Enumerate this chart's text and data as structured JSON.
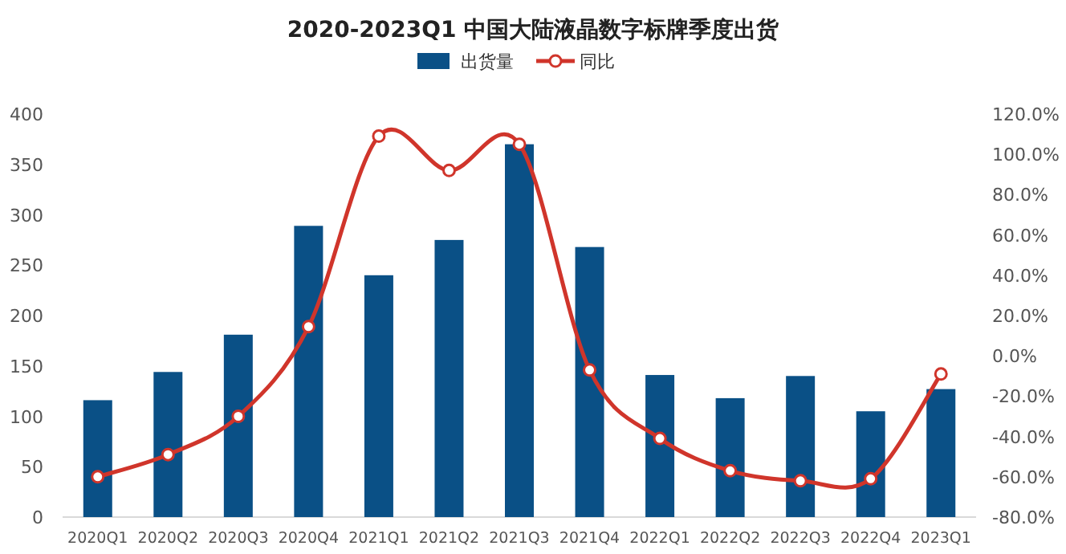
{
  "chart_data": {
    "type": "bar",
    "title": "2020-2023Q1 中国大陆液晶数字标牌季度出货",
    "categories": [
      "2020Q1",
      "2020Q2",
      "2020Q3",
      "2020Q4",
      "2021Q1",
      "2021Q2",
      "2021Q3",
      "2021Q4",
      "2022Q1",
      "2022Q2",
      "2022Q3",
      "2022Q4",
      "2023Q1"
    ],
    "series": [
      {
        "name": "出货量",
        "color": "#0a5086",
        "values": [
          116,
          144,
          181,
          289,
          240,
          275,
          370,
          268,
          141,
          118,
          140,
          105,
          127
        ]
      },
      {
        "name": "同比",
        "type": "line",
        "axis": "y2",
        "color": "#d0352b",
        "marker": "circle",
        "values": [
          -60,
          -49,
          -30,
          14.5,
          109,
          92,
          105,
          -7,
          -41,
          -57,
          -62,
          -61,
          -9
        ]
      }
    ],
    "ylim": [
      0,
      400
    ],
    "yticks": [
      0,
      50,
      100,
      150,
      200,
      250,
      300,
      350,
      400
    ],
    "y2lim": [
      -80,
      120
    ],
    "y2ticks": [
      {
        "value": -80,
        "label": "-80.0%"
      },
      {
        "value": -60,
        "label": "-60.0%"
      },
      {
        "value": -40,
        "label": "-40.0%"
      },
      {
        "value": -20,
        "label": "-20.0%"
      },
      {
        "value": 0,
        "label": "0.0%"
      },
      {
        "value": 20,
        "label": "20.0%"
      },
      {
        "value": 40,
        "label": "40.0%"
      },
      {
        "value": 60,
        "label": "60.0%"
      },
      {
        "value": 80,
        "label": "80.0%"
      },
      {
        "value": 100,
        "label": "100.0%"
      },
      {
        "value": 120,
        "label": "120.0%"
      }
    ],
    "legend": "top",
    "grid": false
  }
}
